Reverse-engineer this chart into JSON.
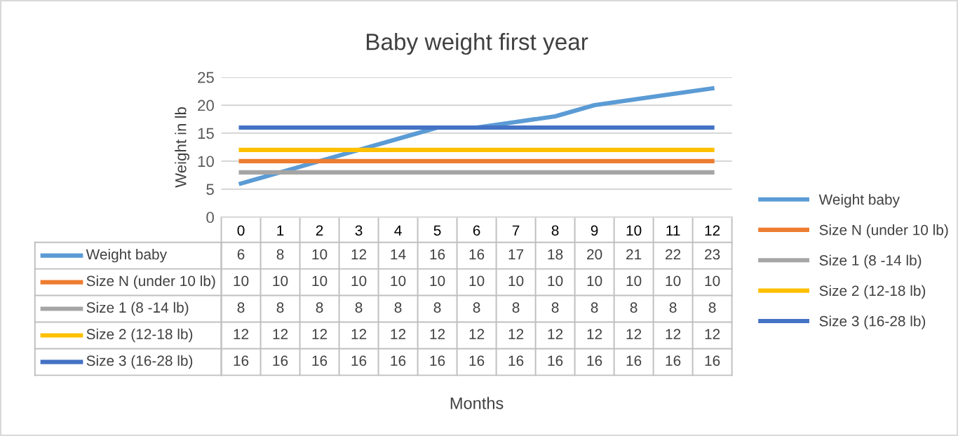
{
  "chart_data": {
    "type": "line",
    "title": "Baby weight first year",
    "annotations": [
      "Months"
    ],
    "ylabel": "Weight in lb",
    "categories": [
      "0",
      "1",
      "2",
      "3",
      "4",
      "5",
      "6",
      "7",
      "8",
      "9",
      "10",
      "11",
      "12"
    ],
    "series": [
      {
        "name": "Weight baby",
        "color": "#5b9bd5",
        "values": [
          6,
          8,
          10,
          12,
          14,
          16,
          16,
          17,
          18,
          20,
          21,
          22,
          23
        ]
      },
      {
        "name": "Size N (under 10 lb)",
        "color": "#ed7d31",
        "values": [
          10,
          10,
          10,
          10,
          10,
          10,
          10,
          10,
          10,
          10,
          10,
          10,
          10
        ]
      },
      {
        "name": "Size 1 (8 -14 lb)",
        "color": "#a5a5a5",
        "values": [
          8,
          8,
          8,
          8,
          8,
          8,
          8,
          8,
          8,
          8,
          8,
          8,
          8
        ]
      },
      {
        "name": "Size 2 (12-18 lb)",
        "color": "#ffc000",
        "values": [
          12,
          12,
          12,
          12,
          12,
          12,
          12,
          12,
          12,
          12,
          12,
          12,
          12
        ]
      },
      {
        "name": "Size 3 (16-28 lb)",
        "color": "#4472c4",
        "values": [
          16,
          16,
          16,
          16,
          16,
          16,
          16,
          16,
          16,
          16,
          16,
          16,
          16
        ]
      }
    ],
    "ylim": [
      0,
      25
    ],
    "yticks": [
      0,
      5,
      10,
      15,
      20,
      25
    ],
    "grid": "y",
    "legend": "right",
    "marker": "none",
    "line_style": "solid",
    "data_labels": true
  }
}
